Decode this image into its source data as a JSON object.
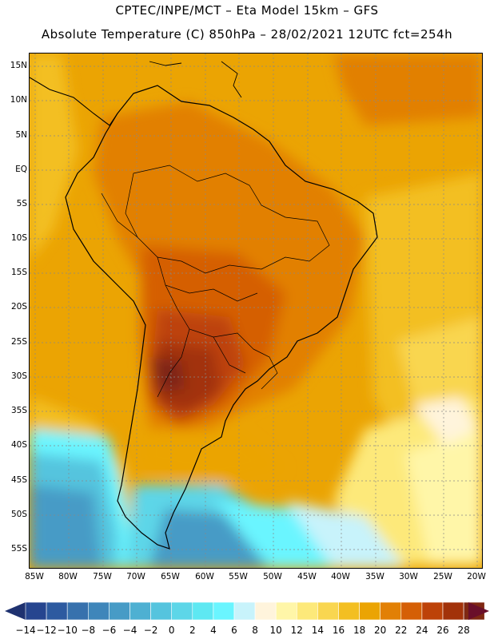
{
  "header": {
    "line1": "CPTEC/INPE/MCT –  Eta Model 15km – GFS",
    "line2": "Absolute Temperature (C) 850hPa – 28/02/2021 12UTC fct=254h"
  },
  "axes": {
    "lat_labels": [
      "15N",
      "10N",
      "5N",
      "EQ",
      "5S",
      "10S",
      "15S",
      "20S",
      "25S",
      "30S",
      "35S",
      "40S",
      "45S",
      "50S",
      "55S"
    ],
    "lon_labels": [
      "85W",
      "80W",
      "75W",
      "70W",
      "65W",
      "60W",
      "55W",
      "50W",
      "45W",
      "40W",
      "35W",
      "30W",
      "25W",
      "20W"
    ]
  },
  "colorbar": {
    "labels": [
      "-14",
      "-12",
      "-10",
      "-8",
      "-6",
      "-4",
      "-2",
      "0",
      "2",
      "4",
      "6",
      "8",
      "10",
      "12",
      "14",
      "16",
      "18",
      "20",
      "22",
      "24",
      "26",
      "28"
    ],
    "colors": [
      "#26458f",
      "#2d5aa0",
      "#3771ad",
      "#3f86ba",
      "#479bc6",
      "#4eb0d2",
      "#55c4de",
      "#5dd6e8",
      "#5ee8f2",
      "#6af5ff",
      "#c8f3fb",
      "#fff4dc",
      "#fff6a8",
      "#fde97a",
      "#f9d650",
      "#f3bf22",
      "#eba403",
      "#e28005",
      "#d55f06",
      "#bd4208",
      "#a2320a",
      "#7f2812"
    ],
    "under_color": "#1f3270",
    "over_color": "#6a0f2a"
  },
  "map": {
    "field": "Absolute Temperature 850hPa",
    "units": "C",
    "level": "850hPa"
  }
}
